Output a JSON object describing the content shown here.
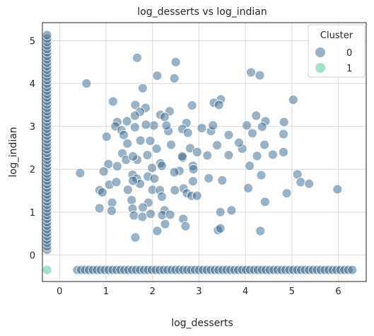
{
  "chart_data": {
    "type": "scatter",
    "title": "log_desserts vs log_indian",
    "xlabel": "log_desserts",
    "ylabel": "log_indian",
    "xlim": [
      -0.37,
      6.6
    ],
    "ylim": [
      -0.62,
      5.42
    ],
    "x_ticks": [
      0,
      1,
      2,
      3,
      4,
      5,
      6
    ],
    "y_ticks": [
      0,
      1,
      2,
      3,
      4,
      5
    ],
    "grid": true,
    "legend": {
      "title": "Cluster",
      "position": "top-right",
      "entries": [
        {
          "label": "0",
          "color": "#36668b"
        },
        {
          "label": "1",
          "color": "#4ac190"
        }
      ]
    },
    "series": [
      {
        "name": "0",
        "color": "#36668b",
        "points": [
          [
            0.58,
            4.0
          ],
          [
            1.67,
            4.6
          ],
          [
            2.5,
            4.5
          ],
          [
            2.1,
            4.18
          ],
          [
            2.47,
            4.12
          ],
          [
            4.12,
            4.26
          ],
          [
            4.31,
            4.19
          ],
          [
            5.03,
            3.62
          ],
          [
            3.47,
            3.63
          ],
          [
            1.79,
            3.89
          ],
          [
            1.15,
            3.58
          ],
          [
            1.63,
            3.5
          ],
          [
            1.85,
            3.43
          ],
          [
            2.37,
            3.35
          ],
          [
            2.85,
            3.49
          ],
          [
            3.32,
            3.55
          ],
          [
            3.43,
            3.5
          ],
          [
            1.73,
            3.34
          ],
          [
            2.17,
            3.27
          ],
          [
            2.26,
            3.22
          ],
          [
            1.24,
            3.1
          ],
          [
            1.45,
            3.12
          ],
          [
            1.62,
            3.25
          ],
          [
            2.73,
            3.08
          ],
          [
            4.23,
            3.25
          ],
          [
            4.43,
            3.12
          ],
          [
            4.83,
            3.1
          ],
          [
            2.03,
            3.02
          ],
          [
            3.06,
            2.96
          ],
          [
            2.64,
            2.94
          ],
          [
            4.03,
            3.02
          ],
          [
            4.36,
            2.99
          ],
          [
            1.2,
            3.0
          ],
          [
            1.33,
            2.91
          ],
          [
            1.62,
            2.98
          ],
          [
            2.34,
            2.89
          ],
          [
            2.76,
            2.85
          ],
          [
            3.26,
            2.89
          ],
          [
            1.01,
            2.76
          ],
          [
            1.38,
            2.8
          ],
          [
            1.86,
            3.04
          ],
          [
            2.3,
            3.02
          ],
          [
            3.64,
            2.8
          ],
          [
            4.15,
            2.84
          ],
          [
            4.82,
            2.82
          ],
          [
            3.3,
            3.02
          ],
          [
            1.46,
            2.6
          ],
          [
            2.09,
            2.48
          ],
          [
            2.4,
            2.57
          ],
          [
            2.81,
            2.49
          ],
          [
            2.96,
            2.4
          ],
          [
            3.39,
            2.56
          ],
          [
            4.41,
            2.57
          ],
          [
            4.59,
            2.34
          ],
          [
            1.35,
            2.37
          ],
          [
            1.67,
            2.22
          ],
          [
            1.89,
            2.33
          ],
          [
            2.17,
            2.14
          ],
          [
            2.65,
            2.27
          ],
          [
            3.18,
            2.32
          ],
          [
            3.64,
            2.33
          ],
          [
            3.93,
            2.48
          ],
          [
            4.25,
            2.31
          ],
          [
            4.82,
            2.4
          ],
          [
            1.05,
            2.12
          ],
          [
            1.24,
            2.07
          ],
          [
            1.43,
            2.22
          ],
          [
            1.99,
            2.03
          ],
          [
            2.2,
            2.08
          ],
          [
            2.58,
            1.96
          ],
          [
            2.87,
            2.08
          ],
          [
            4.09,
            2.08
          ],
          [
            4.34,
            1.86
          ],
          [
            0.44,
            1.91
          ],
          [
            0.95,
            1.95
          ],
          [
            1.57,
            1.87
          ],
          [
            1.66,
            1.78
          ],
          [
            1.9,
            1.83
          ],
          [
            2.47,
            1.93
          ],
          [
            2.87,
            1.72
          ],
          [
            3.21,
            1.79
          ],
          [
            3.5,
            1.74
          ],
          [
            5.12,
            1.88
          ],
          [
            5.19,
            1.7
          ],
          [
            5.37,
            1.66
          ],
          [
            0.86,
            1.51
          ],
          [
            1.07,
            1.64
          ],
          [
            1.22,
            1.7
          ],
          [
            1.47,
            1.52
          ],
          [
            1.73,
            1.66
          ],
          [
            2.0,
            1.52
          ],
          [
            2.16,
            1.51
          ],
          [
            2.48,
            1.51
          ],
          [
            2.67,
            1.55
          ],
          [
            2.74,
            1.44
          ],
          [
            2.84,
            1.38
          ],
          [
            2.96,
            1.38
          ],
          [
            4.06,
            1.56
          ],
          [
            4.89,
            1.44
          ],
          [
            5.98,
            1.53
          ],
          [
            0.92,
            1.46
          ],
          [
            1.13,
            1.22
          ],
          [
            1.55,
            1.28
          ],
          [
            1.91,
            1.22
          ],
          [
            2.2,
            1.36
          ],
          [
            4.42,
            1.24
          ],
          [
            0.86,
            1.09
          ],
          [
            1.12,
            1.03
          ],
          [
            1.57,
            1.08
          ],
          [
            1.79,
            1.11
          ],
          [
            2.26,
            1.04
          ],
          [
            3.46,
            1.0
          ],
          [
            3.7,
            1.04
          ],
          [
            1.6,
            0.92
          ],
          [
            1.78,
            0.89
          ],
          [
            1.96,
            0.96
          ],
          [
            2.21,
            0.93
          ],
          [
            2.66,
            0.84
          ],
          [
            2.38,
            0.94
          ],
          [
            3.41,
            0.58
          ],
          [
            3.46,
            0.62
          ],
          [
            4.32,
            0.56
          ],
          [
            1.63,
            0.41
          ],
          [
            2.1,
            0.56
          ],
          [
            2.27,
            0.72
          ],
          [
            2.71,
            0.67
          ],
          [
            1.58,
            1.73
          ],
          [
            2.04,
            1.78
          ],
          [
            1.74,
            2.67
          ],
          [
            2.88,
            2.0
          ],
          [
            3.86,
            2.62
          ],
          [
            2.64,
            2.3
          ],
          [
            1.95,
            2.66
          ],
          [
            1.58,
            2.3
          ]
        ]
      },
      {
        "name": "1",
        "color": "#4ac190",
        "points": [
          [
            -0.27,
            -0.35
          ]
        ]
      }
    ]
  }
}
